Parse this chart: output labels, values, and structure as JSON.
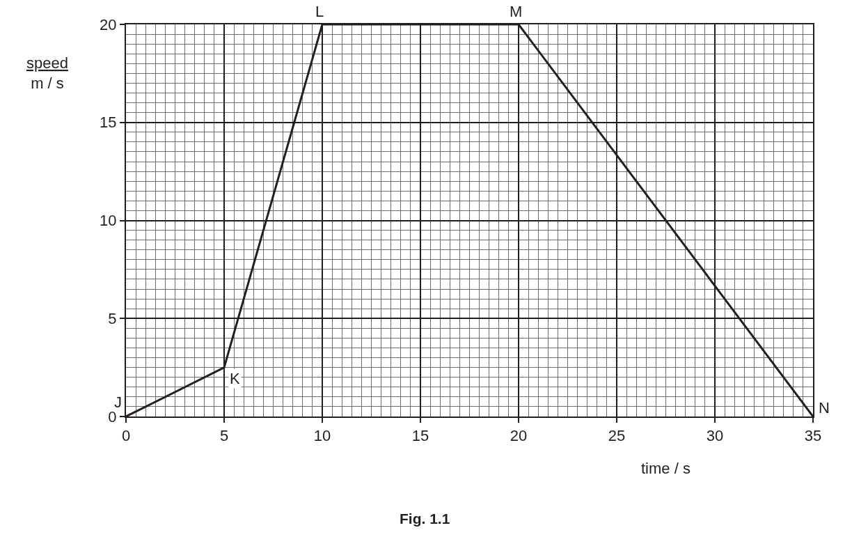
{
  "chart_data": {
    "type": "line",
    "x": [
      0,
      5,
      10,
      20,
      35
    ],
    "values": [
      0,
      2.5,
      20,
      20,
      0
    ],
    "color": "#231f20",
    "xlabel": "time / s",
    "ylabel": "speed\nm / s",
    "xlim": [
      0,
      35
    ],
    "ylim": [
      0,
      20
    ],
    "xticks": [
      0,
      5,
      10,
      15,
      20,
      25,
      30,
      35
    ],
    "yticks": [
      0,
      5,
      10,
      15,
      20
    ],
    "grid": true,
    "marker": "none",
    "line_style": "solid",
    "annotations": [
      {
        "text": "J",
        "x": 0,
        "y": 0
      },
      {
        "text": "K",
        "x": 5,
        "y": 2.5
      },
      {
        "text": "L",
        "x": 10,
        "y": 20
      },
      {
        "text": "M",
        "x": 20,
        "y": 20
      },
      {
        "text": "N",
        "x": 35,
        "y": 0
      },
      "Fig. 1.1"
    ]
  }
}
